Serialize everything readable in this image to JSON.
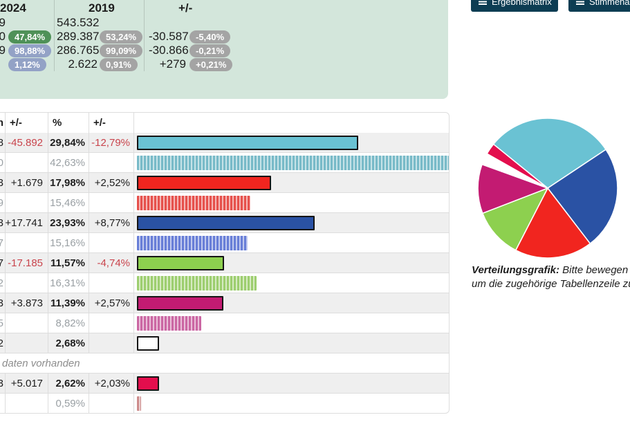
{
  "theme": {
    "summary_bg": "#d3e6db",
    "button_bg": "#0d3d53",
    "badge_green": "#4f9158",
    "badge_bluegray": "#93a2c6",
    "badge_gray": "#a4a4a4",
    "neg_text": "#c9444c",
    "muted_text": "#9aa0a4",
    "row_alt_bg": "#efefef",
    "bar_border": "#141414"
  },
  "toolbar": {
    "buttons": [
      {
        "label": "Ergebnismatrix",
        "icon": "list-icon"
      },
      {
        "label": "Stimmenan",
        "icon": "list-icon"
      }
    ]
  },
  "summary": {
    "col_headers": [
      "2024",
      "2019",
      "+/-"
    ],
    "rows": [
      {
        "c2024": {
          "num": "9"
        },
        "c2019": {
          "num": "543.532"
        },
        "cdiff": {}
      },
      {
        "c2024": {
          "num": "0",
          "badge": "47,84%",
          "badge_color": "green"
        },
        "c2019": {
          "num": "289.387",
          "badge": "53,24%"
        },
        "cdiff": {
          "num": "-30.587",
          "badge": "-5,40%"
        }
      },
      {
        "c2024": {
          "num": "9",
          "badge": "98,88%",
          "badge_color": "bluegray"
        },
        "c2019": {
          "num": "286.765",
          "badge": "99,09%"
        },
        "cdiff": {
          "num": "-30.866",
          "badge": "-0,21%"
        }
      },
      {
        "c2024": {
          "num": "",
          "badge": "1,12%",
          "badge_color": "bluegray"
        },
        "c2019": {
          "num": "2.622",
          "badge": "0,91%"
        },
        "cdiff": {
          "num": "+279",
          "badge": "+0,21%"
        }
      }
    ]
  },
  "results_table": {
    "header": {
      "col_cut": "n",
      "col_diff": "+/-",
      "col_pct": "%",
      "col_pct_diff": "+/-"
    },
    "bar_scale_max": 42.63,
    "rows": [
      {
        "kind": "current",
        "cut": "8",
        "diff": "-45.892",
        "pct": "29,84%",
        "pct_diff": "-12,79%",
        "party": "teal",
        "value": 29.84
      },
      {
        "kind": "compare",
        "cut": "0",
        "pct": "42,63%",
        "party": "teal",
        "value": 42.63
      },
      {
        "kind": "current",
        "cut": "3",
        "diff": "+1.679",
        "pct": "17,98%",
        "pct_diff": "+2,52%",
        "party": "red",
        "value": 17.98
      },
      {
        "kind": "compare",
        "cut": "9",
        "pct": "15,46%",
        "party": "red",
        "value": 15.46
      },
      {
        "kind": "current",
        "cut": "3",
        "diff": "+17.741",
        "pct": "23,93%",
        "pct_diff": "+8,77%",
        "party": "blue",
        "value": 23.93
      },
      {
        "kind": "compare",
        "cut": "7",
        "pct": "15,16%",
        "party": "blue",
        "value": 15.16
      },
      {
        "kind": "current",
        "cut": "7",
        "diff": "-17.185",
        "pct": "11,57%",
        "pct_diff": "-4,74%",
        "party": "green",
        "value": 11.57
      },
      {
        "kind": "compare",
        "cut": "2",
        "pct": "16,31%",
        "party": "green",
        "value": 16.31
      },
      {
        "kind": "current",
        "cut": "3",
        "diff": "+3.873",
        "pct": "11,39%",
        "pct_diff": "+2,57%",
        "party": "magenta",
        "value": 11.39
      },
      {
        "kind": "compare",
        "cut": "5",
        "pct": "8,82%",
        "party": "magenta",
        "value": 8.82
      },
      {
        "kind": "current",
        "cut": "2",
        "diff": "",
        "pct": "2,68%",
        "pct_diff": "",
        "party": "white",
        "value": 2.68
      },
      {
        "kind": "note",
        "text": "daten vorhanden"
      },
      {
        "kind": "current",
        "cut": "3",
        "diff": "+5.017",
        "pct": "2,62%",
        "pct_diff": "+2,03%",
        "party": "crimson",
        "value": 2.62
      },
      {
        "kind": "compare",
        "cut": "",
        "pct": "0,59%",
        "party": "crimson",
        "value": 0.59
      }
    ]
  },
  "party_colors": {
    "teal": {
      "main": "#6ac2d3",
      "stripe": "#6cb4c3"
    },
    "red": {
      "main": "#f1251f",
      "stripe": "#e4423c"
    },
    "blue": {
      "main": "#2a52a4",
      "stripe": "#5b73d4"
    },
    "green": {
      "main": "#8dd04f",
      "stripe": "#95ca62"
    },
    "magenta": {
      "main": "#c31b72",
      "stripe": "#c75a9b"
    },
    "white": {
      "main": "#ffffff",
      "stripe": "#ffffff"
    },
    "crimson": {
      "main": "#e30e4d",
      "stripe": "#c98282"
    }
  },
  "pie_caption": {
    "title": "Verteilungsgrafik:",
    "line1": " Bitte bewegen Sie",
    "line2": "um die zugehörige Tabellenzeile zu m"
  },
  "chart_data": [
    {
      "type": "bar",
      "orientation": "horizontal",
      "categories": [
        "teal-aktuell",
        "teal-vergleich",
        "rot-aktuell",
        "rot-vergleich",
        "blau-aktuell",
        "blau-vergleich",
        "gruen-aktuell",
        "gruen-vergleich",
        "magenta-aktuell",
        "magenta-vergleich",
        "weiss-aktuell",
        "crimson-aktuell",
        "crimson-vergleich"
      ],
      "values": [
        29.84,
        42.63,
        17.98,
        15.46,
        23.93,
        15.16,
        11.57,
        16.31,
        11.39,
        8.82,
        2.68,
        2.62,
        0.59
      ],
      "xlabel": "",
      "ylabel": "",
      "xlim": [
        0,
        42.63
      ],
      "grid": false
    },
    {
      "type": "pie",
      "labels": [
        "teal",
        "blue",
        "red",
        "green",
        "magenta",
        "white",
        "crimson"
      ],
      "values": [
        29.84,
        23.93,
        17.98,
        11.57,
        11.39,
        2.68,
        2.62
      ],
      "colors": [
        "#6ac2d3",
        "#2a52a4",
        "#f1251f",
        "#8dd04f",
        "#c31b72",
        "#ffffff",
        "#e30e4d"
      ],
      "start_angle_deg": -51,
      "direction": "clockwise",
      "legend": "none"
    }
  ]
}
